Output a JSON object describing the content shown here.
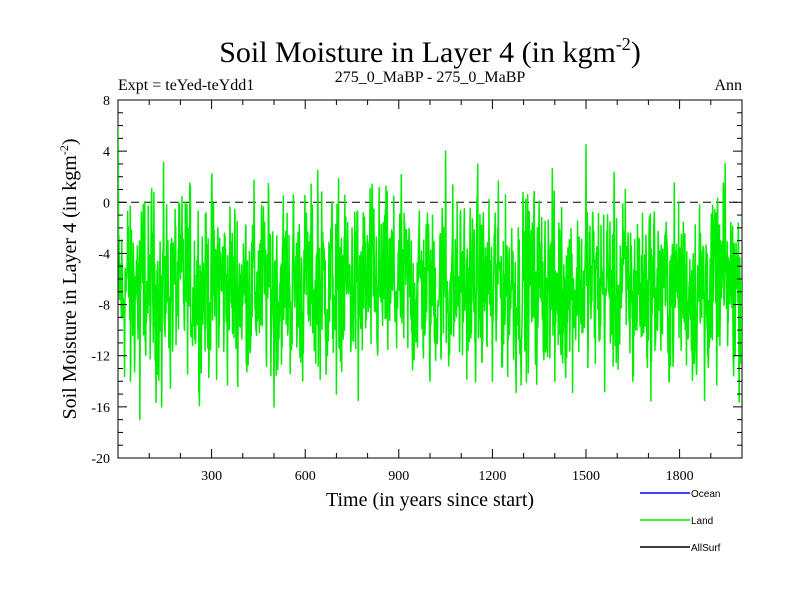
{
  "chart_data": {
    "type": "line",
    "title_main": "Soil Moisture in Layer 4 (in kgm",
    "title_sup": "-2",
    "title_close": ")",
    "subtitle_left": "Expt = teYed-teYdd1",
    "subtitle_center": "275_0_MaBP - 275_0_MaBP",
    "subtitle_right": "Ann",
    "xlabel": "Time (in years since start)",
    "ylabel_main": "Soil Moisture in Layer 4 (in kgm",
    "ylabel_sup": "-2",
    "ylabel_close": ")",
    "xlim": [
      0,
      2000
    ],
    "ylim": [
      -20,
      8
    ],
    "x_ticks": [
      300,
      600,
      900,
      1200,
      1500,
      1800
    ],
    "y_ticks": [
      8,
      4,
      0,
      -4,
      -8,
      -12,
      -16,
      -20
    ],
    "reference_line": 0,
    "series": [
      {
        "name": "Ocean",
        "color": "#0000ff",
        "values": []
      },
      {
        "name": "Land",
        "color": "#00ee00",
        "n_points": 2000,
        "approx_mean": -6.5,
        "approx_min": -17,
        "approx_max": 6,
        "key_points": [
          [
            0,
            6
          ],
          [
            15,
            -9
          ],
          [
            40,
            -14
          ],
          [
            70,
            -17
          ],
          [
            100,
            -8
          ],
          [
            140,
            -16
          ],
          [
            200,
            -6
          ],
          [
            260,
            -15
          ],
          [
            320,
            -2
          ],
          [
            400,
            -8
          ],
          [
            500,
            -16
          ],
          [
            600,
            -2
          ],
          [
            640,
            2.5
          ],
          [
            700,
            -15
          ],
          [
            750,
            -2
          ],
          [
            770,
            -15.5
          ],
          [
            900,
            -3
          ],
          [
            1000,
            -14
          ],
          [
            1050,
            4
          ],
          [
            1100,
            -6
          ],
          [
            1200,
            -14
          ],
          [
            1300,
            -4
          ],
          [
            1400,
            -14
          ],
          [
            1500,
            4.5
          ],
          [
            1550,
            -6
          ],
          [
            1650,
            -14
          ],
          [
            1750,
            -6
          ],
          [
            1880,
            -15.5
          ],
          [
            1940,
            1.5
          ],
          [
            2000,
            -6
          ]
        ]
      },
      {
        "name": "AllSurf",
        "color": "#000000",
        "values": []
      }
    ],
    "legend_position": "bottom-right"
  }
}
